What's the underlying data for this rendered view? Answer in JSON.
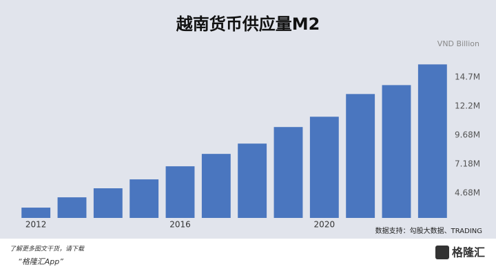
{
  "chart_data": {
    "type": "bar",
    "title": "越南货币供应量M2",
    "unit_label": "VND Billion",
    "categories": [
      "2012",
      null,
      null,
      null,
      "2016",
      null,
      null,
      null,
      "2020",
      null,
      null,
      null
    ],
    "values": [
      3.43,
      4.32,
      5.1,
      5.87,
      7.0,
      8.07,
      8.96,
      10.39,
      11.28,
      13.24,
      14.01,
      15.8
    ],
    "color": "#4a76bf",
    "ylim": [
      2.54,
      16
    ],
    "yticks": [
      {
        "value": 4.68,
        "label": "4.68M"
      },
      {
        "value": 7.18,
        "label": "7.18M"
      },
      {
        "value": 9.68,
        "label": "9.68M"
      },
      {
        "value": 12.2,
        "label": "12.2M"
      },
      {
        "value": 14.7,
        "label": "14.7M"
      }
    ],
    "source": "数据支持：勾股大数据、TRADING"
  },
  "footer": {
    "line1": "了解更多图文干货，请下载",
    "line2": "“格隆汇App”",
    "brand": "格隆汇"
  }
}
